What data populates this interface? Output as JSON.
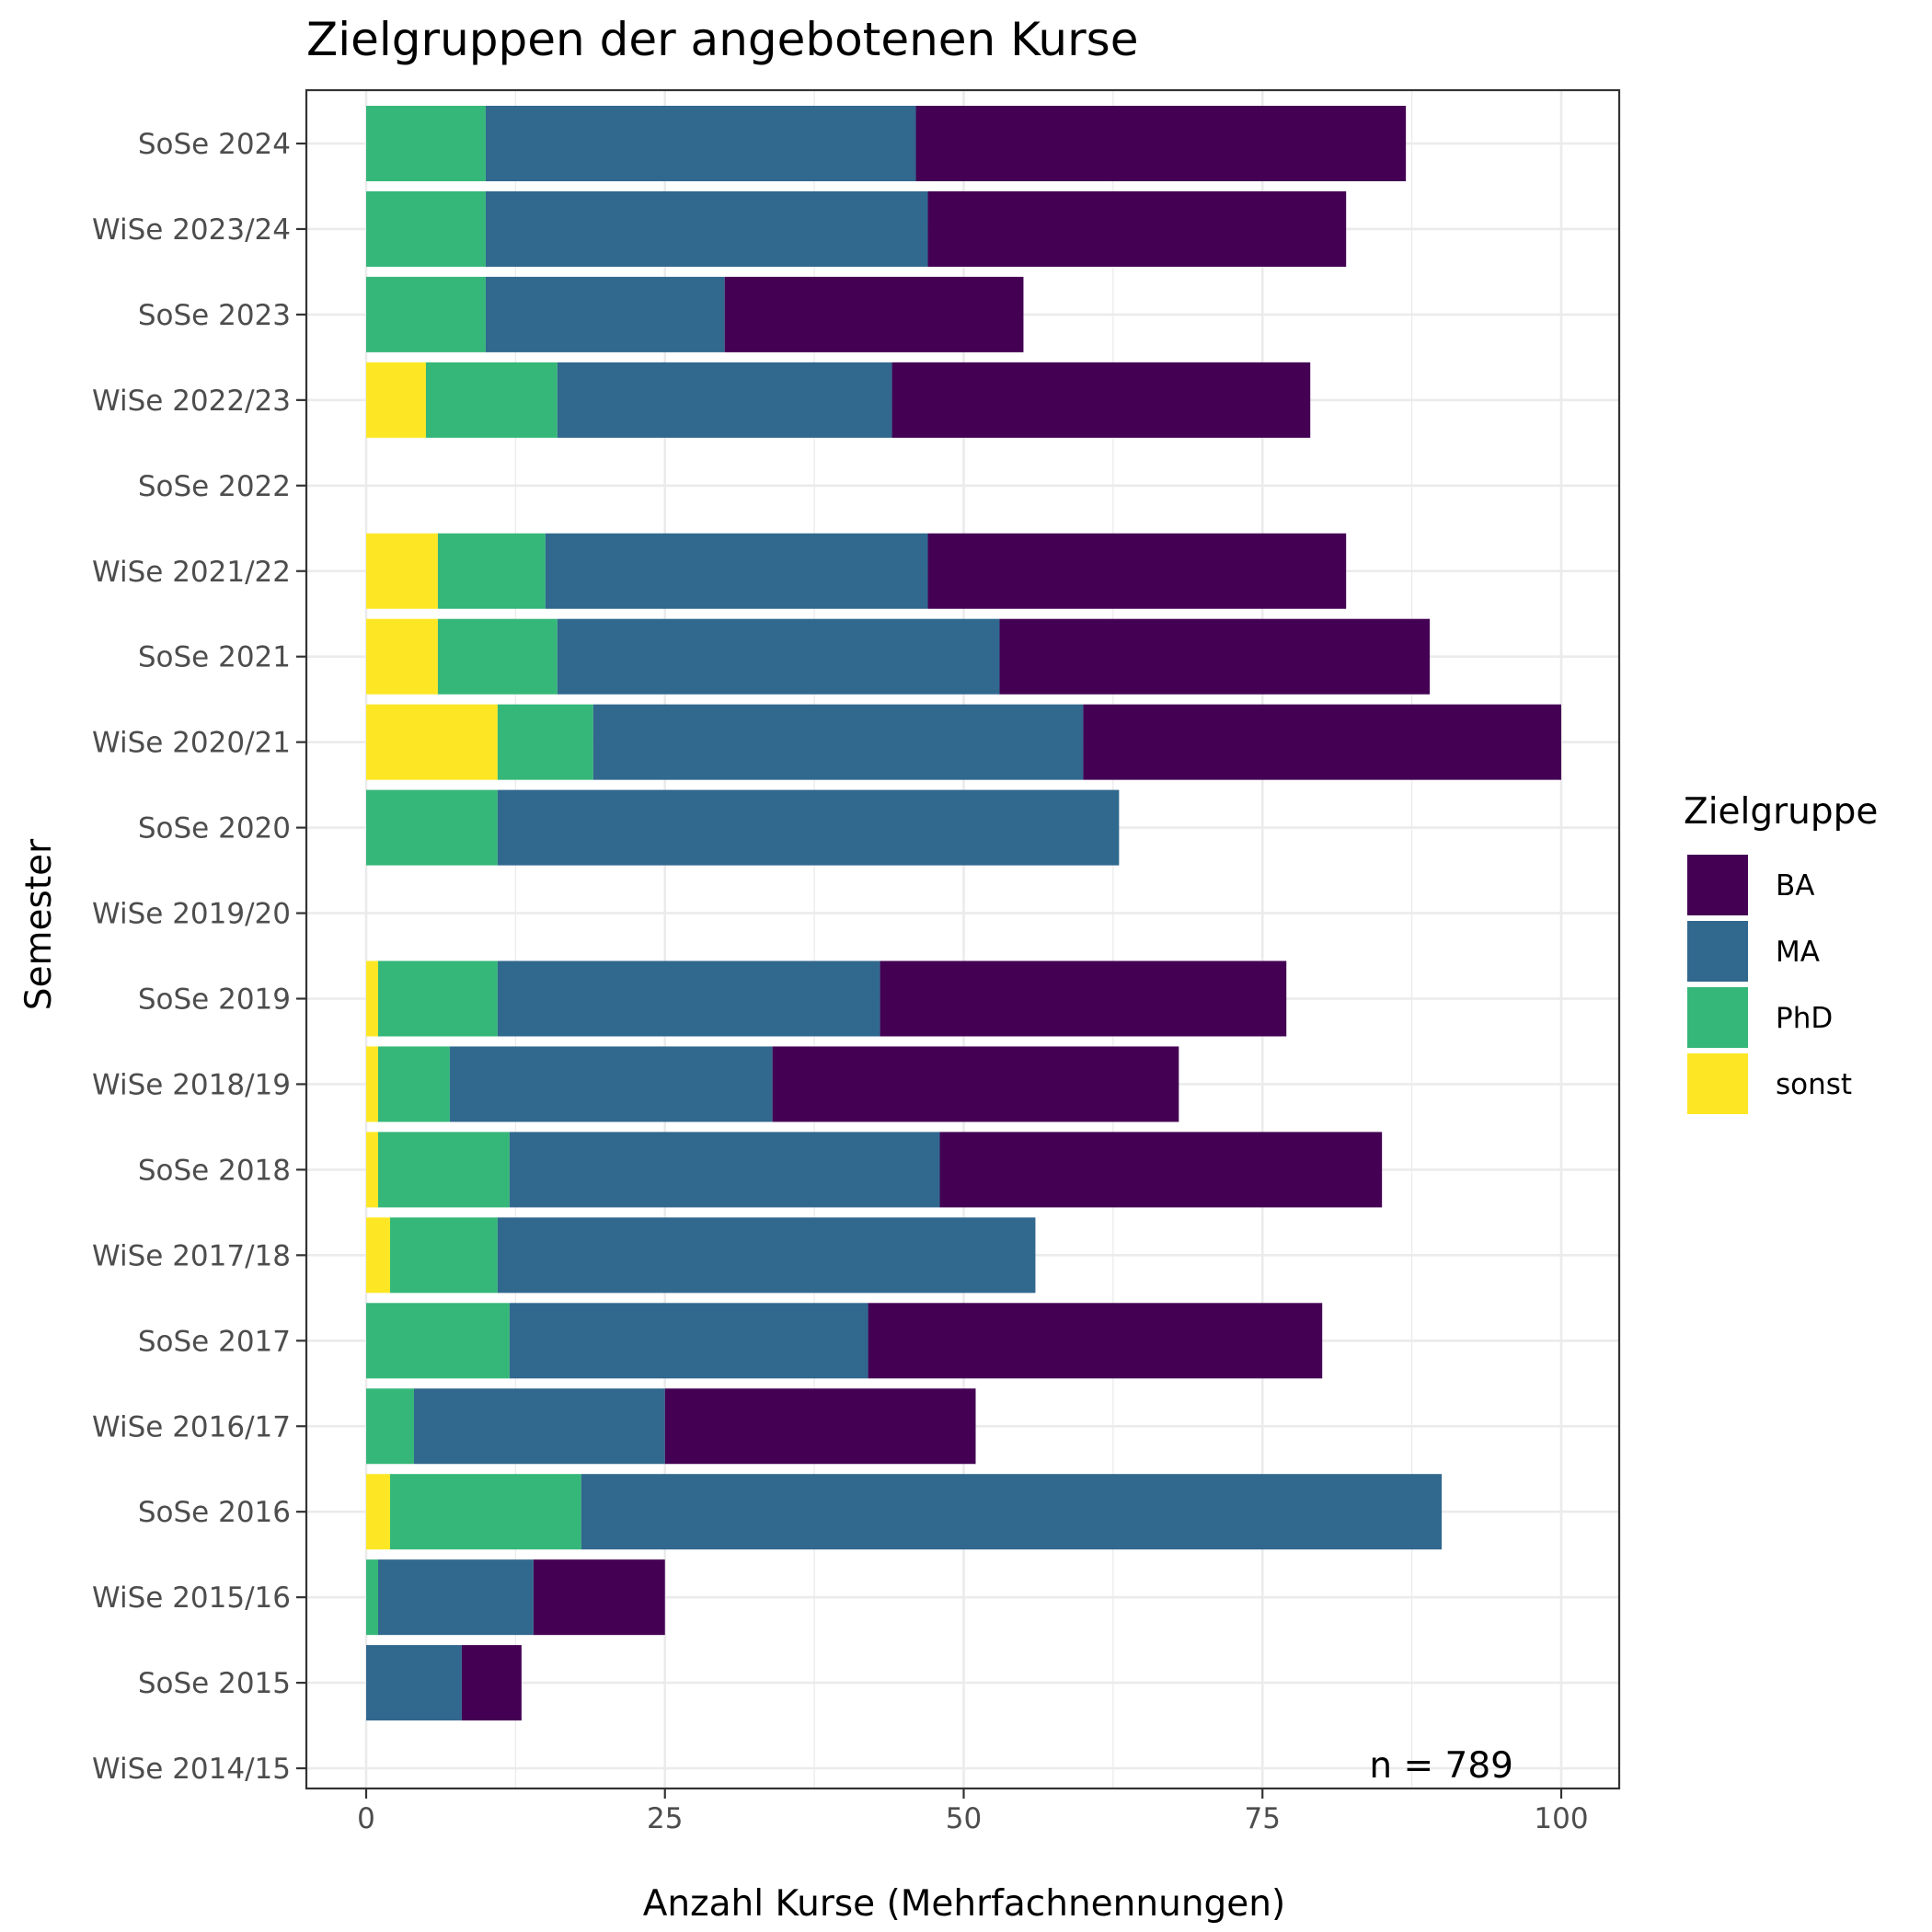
{
  "chart_data": {
    "type": "bar",
    "orientation": "horizontal",
    "stacked": true,
    "title": "Zielgruppen der angebotenen Kurse",
    "xlabel": "Anzahl Kurse (Mehrfachnennungen)",
    "ylabel": "Semester",
    "xlim": [
      0,
      100
    ],
    "xticks": [
      0,
      25,
      50,
      75,
      100
    ],
    "grid": true,
    "legend_title": "Zielgruppe",
    "legend_position": "right",
    "annotation": "n = 789",
    "categories": [
      "SoSe 2024",
      "WiSe 2023/24",
      "SoSe 2023",
      "WiSe 2022/23",
      "SoSe 2022",
      "WiSe 2021/22",
      "SoSe 2021",
      "WiSe 2020/21",
      "SoSe 2020",
      "WiSe 2019/20",
      "SoSe 2019",
      "WiSe 2018/19",
      "SoSe 2018",
      "WiSe 2017/18",
      "SoSe 2017",
      "WiSe 2016/17",
      "SoSe 2016",
      "WiSe 2015/16",
      "SoSe 2015",
      "WiSe 2014/15"
    ],
    "series": [
      {
        "name": "sonst",
        "color": "#FDE725",
        "values": [
          0,
          0,
          0,
          5,
          0,
          6,
          6,
          11,
          0,
          0,
          1,
          1,
          1,
          2,
          0,
          0,
          2,
          0,
          0,
          0
        ]
      },
      {
        "name": "PhD",
        "color": "#35B779",
        "values": [
          10,
          10,
          10,
          11,
          0,
          9,
          10,
          8,
          11,
          0,
          10,
          6,
          11,
          9,
          12,
          4,
          16,
          1,
          0,
          0
        ]
      },
      {
        "name": "MA",
        "color": "#31688E",
        "values": [
          36,
          37,
          20,
          28,
          0,
          32,
          37,
          41,
          52,
          0,
          32,
          27,
          36,
          45,
          30,
          21,
          72,
          13,
          8,
          0
        ]
      },
      {
        "name": "BA",
        "color": "#440154",
        "values": [
          41,
          35,
          25,
          35,
          0,
          35,
          36,
          40,
          0,
          0,
          34,
          34,
          37,
          0,
          38,
          26,
          0,
          11,
          5,
          0
        ]
      }
    ],
    "legend_order": [
      "BA",
      "MA",
      "PhD",
      "sonst"
    ]
  }
}
